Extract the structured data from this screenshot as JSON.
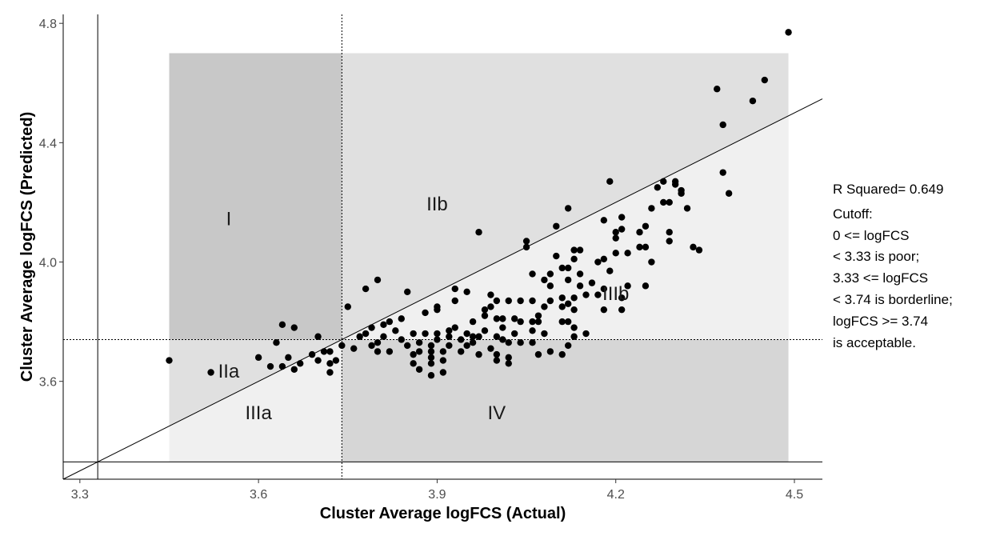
{
  "chart_data": {
    "type": "scatter",
    "xlabel": "Cluster Average logFCS (Actual)",
    "ylabel": "Cluster Average logFCS (Predicted)",
    "xlim": [
      3.272,
      4.547
    ],
    "ylim": [
      3.272,
      4.83
    ],
    "x_ticks": [
      "3.3",
      "3.6",
      "3.9",
      "4.2",
      "4.5"
    ],
    "y_ticks": [
      "3.6",
      "4.0",
      "4.4",
      "4.8"
    ],
    "grid": false,
    "colors": {
      "region_I": "#c8c8c8",
      "region_IIb": "#e0e0e0",
      "region_IIa": "#e0e0e0",
      "region_IIIa": "#f0f0f0",
      "region_IIIb": "#f0f0f0",
      "region_IV": "#d6d6d6",
      "points": "#000000"
    },
    "regions": [
      {
        "name": "I",
        "label_x": 3.55,
        "label_y": 4.14
      },
      {
        "name": "IIb",
        "label_x": 3.9,
        "label_y": 4.19
      },
      {
        "name": "IIa",
        "label_x": 3.55,
        "label_y": 3.63
      },
      {
        "name": "IIIa",
        "label_x": 3.6,
        "label_y": 3.49
      },
      {
        "name": "IV",
        "label_x": 4.0,
        "label_y": 3.49
      },
      {
        "name": "IIIb",
        "label_x": 4.2,
        "label_y": 3.89
      }
    ],
    "region_bounds": {
      "x_min": 3.45,
      "x_max": 4.49,
      "y_min": 3.33,
      "y_max": 4.7
    },
    "cutoffs": {
      "low": 3.33,
      "high": 3.74
    },
    "fit_line": {
      "intercept": 0.0,
      "slope": 1.0
    },
    "annotations": {
      "r_squared": "R Squared=  0.649",
      "cutoff_lines": [
        "Cutoff:",
        "0 <= logFCS",
        "< 3.33 is poor;",
        "3.33 <= logFCS",
        "< 3.74 is borderline;",
        "logFCS >= 3.74",
        "is acceptable."
      ]
    },
    "points": [
      [
        3.45,
        3.67
      ],
      [
        3.52,
        3.63
      ],
      [
        3.6,
        3.68
      ],
      [
        3.62,
        3.65
      ],
      [
        3.63,
        3.73
      ],
      [
        3.64,
        3.65
      ],
      [
        3.64,
        3.79
      ],
      [
        3.65,
        3.68
      ],
      [
        3.66,
        3.64
      ],
      [
        3.67,
        3.66
      ],
      [
        3.66,
        3.78
      ],
      [
        3.69,
        3.69
      ],
      [
        3.7,
        3.67
      ],
      [
        3.71,
        3.7
      ],
      [
        3.7,
        3.75
      ],
      [
        3.72,
        3.63
      ],
      [
        3.72,
        3.66
      ],
      [
        3.72,
        3.7
      ],
      [
        3.73,
        3.67
      ],
      [
        3.74,
        3.72
      ],
      [
        3.75,
        3.85
      ],
      [
        3.76,
        3.71
      ],
      [
        3.77,
        3.75
      ],
      [
        3.78,
        3.76
      ],
      [
        3.78,
        3.91
      ],
      [
        3.79,
        3.72
      ],
      [
        3.79,
        3.78
      ],
      [
        3.8,
        3.7
      ],
      [
        3.8,
        3.73
      ],
      [
        3.81,
        3.75
      ],
      [
        3.81,
        3.79
      ],
      [
        3.82,
        3.7
      ],
      [
        3.82,
        3.8
      ],
      [
        3.8,
        3.94
      ],
      [
        3.83,
        3.77
      ],
      [
        3.84,
        3.74
      ],
      [
        3.84,
        3.81
      ],
      [
        3.85,
        3.72
      ],
      [
        3.85,
        3.9
      ],
      [
        3.86,
        3.66
      ],
      [
        3.86,
        3.69
      ],
      [
        3.86,
        3.76
      ],
      [
        3.87,
        3.64
      ],
      [
        3.87,
        3.7
      ],
      [
        3.87,
        3.73
      ],
      [
        3.88,
        3.76
      ],
      [
        3.88,
        3.83
      ],
      [
        3.89,
        3.62
      ],
      [
        3.89,
        3.66
      ],
      [
        3.89,
        3.68
      ],
      [
        3.89,
        3.7
      ],
      [
        3.89,
        3.72
      ],
      [
        3.9,
        3.74
      ],
      [
        3.9,
        3.76
      ],
      [
        3.9,
        3.84
      ],
      [
        3.9,
        3.85
      ],
      [
        3.91,
        3.63
      ],
      [
        3.91,
        3.67
      ],
      [
        3.91,
        3.7
      ],
      [
        3.92,
        3.72
      ],
      [
        3.92,
        3.75
      ],
      [
        3.92,
        3.77
      ],
      [
        3.93,
        3.78
      ],
      [
        3.93,
        3.87
      ],
      [
        3.93,
        3.91
      ],
      [
        3.94,
        3.7
      ],
      [
        3.94,
        3.74
      ],
      [
        3.95,
        3.72
      ],
      [
        3.95,
        3.76
      ],
      [
        3.95,
        3.9
      ],
      [
        3.96,
        3.73
      ],
      [
        3.96,
        3.75
      ],
      [
        3.96,
        3.8
      ],
      [
        3.97,
        3.69
      ],
      [
        3.97,
        3.75
      ],
      [
        3.97,
        4.1
      ],
      [
        3.98,
        3.77
      ],
      [
        3.98,
        3.82
      ],
      [
        3.98,
        3.84
      ],
      [
        3.99,
        3.71
      ],
      [
        3.99,
        3.85
      ],
      [
        3.99,
        3.89
      ],
      [
        4.0,
        3.67
      ],
      [
        4.0,
        3.69
      ],
      [
        4.0,
        3.75
      ],
      [
        4.0,
        3.81
      ],
      [
        4.0,
        3.87
      ],
      [
        4.01,
        3.74
      ],
      [
        4.01,
        3.78
      ],
      [
        4.01,
        3.81
      ],
      [
        4.02,
        3.66
      ],
      [
        4.02,
        3.68
      ],
      [
        4.02,
        3.73
      ],
      [
        4.02,
        3.87
      ],
      [
        4.03,
        3.76
      ],
      [
        4.03,
        3.81
      ],
      [
        4.04,
        3.73
      ],
      [
        4.04,
        3.8
      ],
      [
        4.04,
        3.87
      ],
      [
        4.05,
        4.05
      ],
      [
        4.05,
        4.07
      ],
      [
        4.06,
        3.73
      ],
      [
        4.06,
        3.77
      ],
      [
        4.06,
        3.8
      ],
      [
        4.06,
        3.87
      ],
      [
        4.06,
        3.96
      ],
      [
        4.07,
        3.69
      ],
      [
        4.07,
        3.8
      ],
      [
        4.07,
        3.82
      ],
      [
        4.08,
        3.76
      ],
      [
        4.08,
        3.85
      ],
      [
        4.08,
        3.94
      ],
      [
        4.09,
        3.7
      ],
      [
        4.09,
        3.87
      ],
      [
        4.09,
        3.92
      ],
      [
        4.09,
        3.96
      ],
      [
        4.1,
        4.02
      ],
      [
        4.1,
        4.12
      ],
      [
        4.11,
        3.69
      ],
      [
        4.11,
        3.8
      ],
      [
        4.11,
        3.85
      ],
      [
        4.11,
        3.88
      ],
      [
        4.11,
        3.98
      ],
      [
        4.12,
        3.72
      ],
      [
        4.12,
        3.8
      ],
      [
        4.12,
        3.86
      ],
      [
        4.12,
        3.94
      ],
      [
        4.12,
        3.98
      ],
      [
        4.12,
        4.18
      ],
      [
        4.13,
        3.75
      ],
      [
        4.13,
        3.78
      ],
      [
        4.13,
        3.84
      ],
      [
        4.13,
        3.88
      ],
      [
        4.13,
        4.01
      ],
      [
        4.13,
        4.04
      ],
      [
        4.14,
        3.92
      ],
      [
        4.14,
        3.96
      ],
      [
        4.14,
        4.04
      ],
      [
        4.15,
        3.76
      ],
      [
        4.15,
        3.89
      ],
      [
        4.16,
        3.93
      ],
      [
        4.17,
        3.89
      ],
      [
        4.17,
        4.0
      ],
      [
        4.18,
        3.84
      ],
      [
        4.18,
        3.91
      ],
      [
        4.18,
        4.01
      ],
      [
        4.18,
        4.14
      ],
      [
        4.19,
        3.97
      ],
      [
        4.19,
        4.27
      ],
      [
        4.2,
        4.03
      ],
      [
        4.2,
        4.08
      ],
      [
        4.2,
        4.1
      ],
      [
        4.21,
        3.84
      ],
      [
        4.21,
        3.88
      ],
      [
        4.21,
        4.11
      ],
      [
        4.21,
        4.15
      ],
      [
        4.22,
        3.92
      ],
      [
        4.22,
        4.03
      ],
      [
        4.24,
        4.05
      ],
      [
        4.24,
        4.1
      ],
      [
        4.25,
        3.92
      ],
      [
        4.25,
        4.05
      ],
      [
        4.25,
        4.12
      ],
      [
        4.26,
        4.0
      ],
      [
        4.26,
        4.18
      ],
      [
        4.27,
        4.25
      ],
      [
        4.28,
        4.2
      ],
      [
        4.28,
        4.27
      ],
      [
        4.29,
        4.07
      ],
      [
        4.29,
        4.1
      ],
      [
        4.29,
        4.2
      ],
      [
        4.3,
        4.26
      ],
      [
        4.3,
        4.27
      ],
      [
        4.31,
        4.23
      ],
      [
        4.31,
        4.24
      ],
      [
        4.32,
        4.18
      ],
      [
        4.33,
        4.05
      ],
      [
        4.34,
        4.04
      ],
      [
        4.37,
        4.58
      ],
      [
        4.38,
        4.46
      ],
      [
        4.38,
        4.3
      ],
      [
        4.39,
        4.23
      ],
      [
        4.43,
        4.54
      ],
      [
        4.45,
        4.61
      ],
      [
        4.49,
        4.77
      ]
    ]
  }
}
